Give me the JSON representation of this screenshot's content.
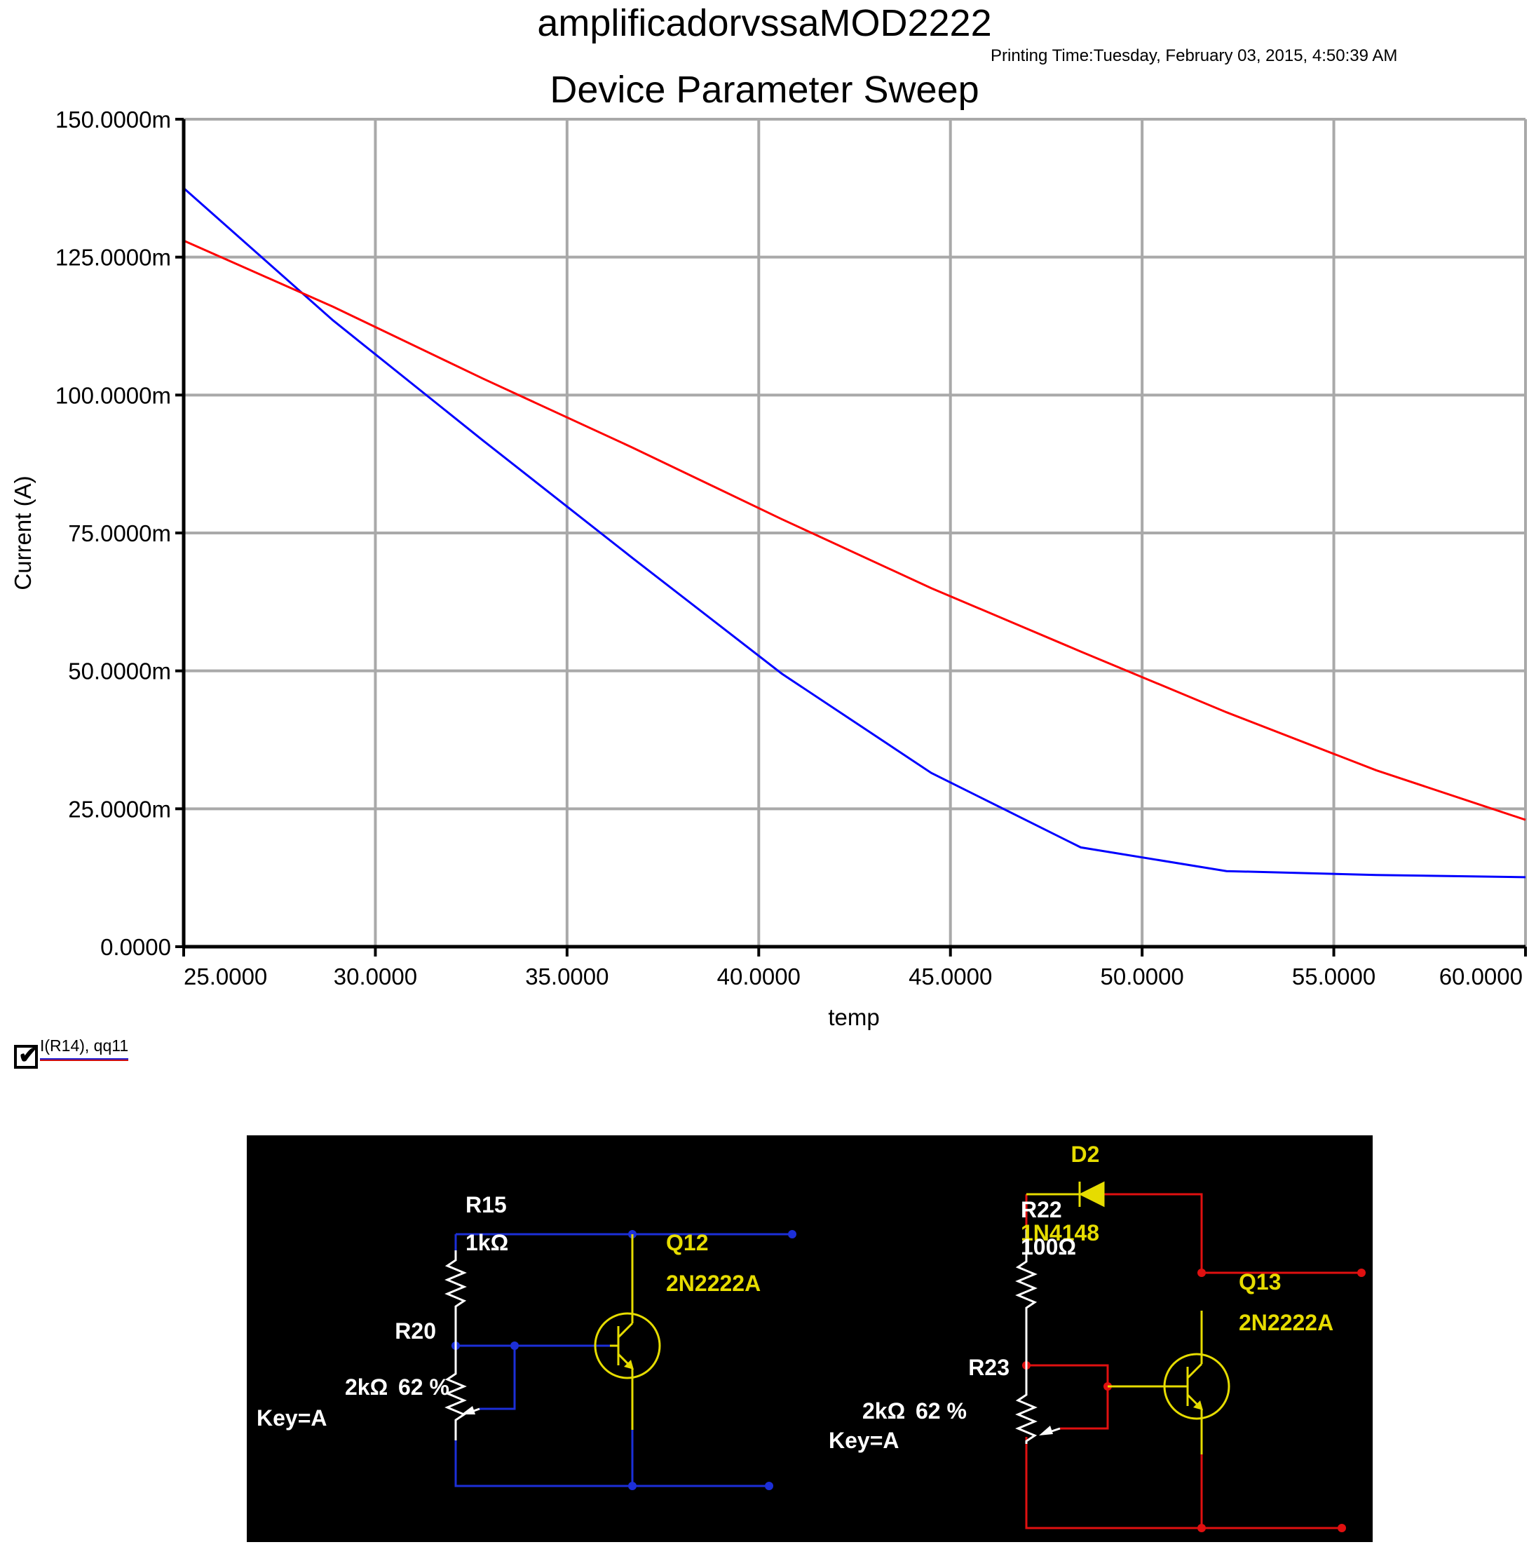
{
  "header": {
    "title": "amplificadorvssaMOD2222",
    "printing_time": "Printing Time:Tuesday, February 03, 2015, 4:50:39 AM",
    "subtitle": "Device Parameter Sweep"
  },
  "chart_data": {
    "type": "line",
    "title": "Device Parameter Sweep",
    "xlabel": "temp",
    "ylabel": "Current (A)",
    "xlim": [
      25,
      60
    ],
    "ylim": [
      0,
      0.15
    ],
    "grid": true,
    "x_ticks": [
      {
        "value": 25,
        "label": "25.0000"
      },
      {
        "value": 30,
        "label": "30.0000"
      },
      {
        "value": 35,
        "label": "35.0000"
      },
      {
        "value": 40,
        "label": "40.0000"
      },
      {
        "value": 45,
        "label": "45.0000"
      },
      {
        "value": 50,
        "label": "50.0000"
      },
      {
        "value": 55,
        "label": "55.0000"
      },
      {
        "value": 60,
        "label": "60.0000"
      }
    ],
    "y_ticks": [
      {
        "value": 0,
        "label": "0.0000"
      },
      {
        "value": 0.025,
        "label": "25.0000m"
      },
      {
        "value": 0.05,
        "label": "50.0000m"
      },
      {
        "value": 0.075,
        "label": "75.0000m"
      },
      {
        "value": 0.1,
        "label": "100.0000m"
      },
      {
        "value": 0.125,
        "label": "125.0000m"
      },
      {
        "value": 0.15,
        "label": "150.0000m"
      }
    ],
    "series": [
      {
        "color": "#0000ff",
        "x": [
          25,
          28.9,
          32.8,
          36.7,
          40.6,
          44.5,
          48.4,
          52.2,
          56.1,
          60
        ],
        "y": [
          0.1375,
          0.1135,
          0.0918,
          0.0705,
          0.0495,
          0.0315,
          0.018,
          0.0137,
          0.013,
          0.0126
        ]
      },
      {
        "color": "#ff0000",
        "x": [
          25,
          28.9,
          32.8,
          36.7,
          40.6,
          44.5,
          48.4,
          52.2,
          56.1,
          60
        ],
        "y": [
          0.128,
          0.116,
          0.103,
          0.0905,
          0.0775,
          0.065,
          0.0535,
          0.0425,
          0.032,
          0.023
        ]
      }
    ]
  },
  "legend": {
    "checked": true,
    "check_glyph": "✔",
    "label": "I(R14), qq11",
    "colors": [
      "#2020d0",
      "#d01010"
    ]
  },
  "schematic": {
    "left": {
      "resistor_name": "R15",
      "resistor_value": "1kΩ",
      "transistor_name": "Q12",
      "transistor_model": "2N2222A",
      "pot_name": "R20",
      "pot_value": "2kΩ",
      "pot_setting": "62 %",
      "pot_key": "Key=A"
    },
    "right": {
      "diode_name": "D2",
      "diode_model": "1N4148",
      "resistor_name": "R22",
      "resistor_value": "100Ω",
      "transistor_name": "Q13",
      "transistor_model": "2N2222A",
      "pot_name": "R23",
      "pot_value": "2kΩ",
      "pot_setting": "62 %",
      "pot_key": "Key=A"
    }
  }
}
